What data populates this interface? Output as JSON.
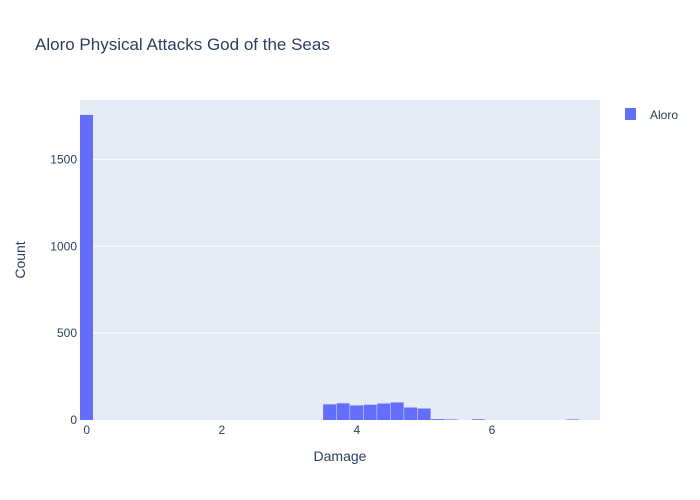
{
  "chart_data": {
    "type": "bar",
    "title": "Aloro Physical Attacks God of the Seas",
    "xlabel": "Damage",
    "ylabel": "Count",
    "xlim": [
      -0.1,
      7.6
    ],
    "ylim": [
      0,
      1842
    ],
    "x_ticks": [
      "0",
      "2",
      "4",
      "6"
    ],
    "x_tick_values": [
      0,
      2,
      4,
      6
    ],
    "y_ticks": [
      "0",
      "500",
      "1000",
      "1500"
    ],
    "y_tick_values": [
      0,
      500,
      1000,
      1500
    ],
    "bin_width": 0.2,
    "grid": true,
    "legend_position": "top-right",
    "series": [
      {
        "name": "Aloro",
        "color": "#636efa",
        "bins": [
          {
            "x0": -0.1,
            "x1": 0.1,
            "count": 1756
          },
          {
            "x0": 3.5,
            "x1": 3.7,
            "count": 90
          },
          {
            "x0": 3.7,
            "x1": 3.9,
            "count": 96
          },
          {
            "x0": 3.9,
            "x1": 4.1,
            "count": 84
          },
          {
            "x0": 4.1,
            "x1": 4.3,
            "count": 88
          },
          {
            "x0": 4.3,
            "x1": 4.5,
            "count": 95
          },
          {
            "x0": 4.5,
            "x1": 4.7,
            "count": 101
          },
          {
            "x0": 4.7,
            "x1": 4.9,
            "count": 72
          },
          {
            "x0": 4.9,
            "x1": 5.1,
            "count": 66
          },
          {
            "x0": 5.1,
            "x1": 5.3,
            "count": 5
          },
          {
            "x0": 5.3,
            "x1": 5.5,
            "count": 3
          },
          {
            "x0": 5.7,
            "x1": 5.9,
            "count": 4
          },
          {
            "x0": 7.1,
            "x1": 7.3,
            "count": 3
          }
        ]
      }
    ]
  }
}
